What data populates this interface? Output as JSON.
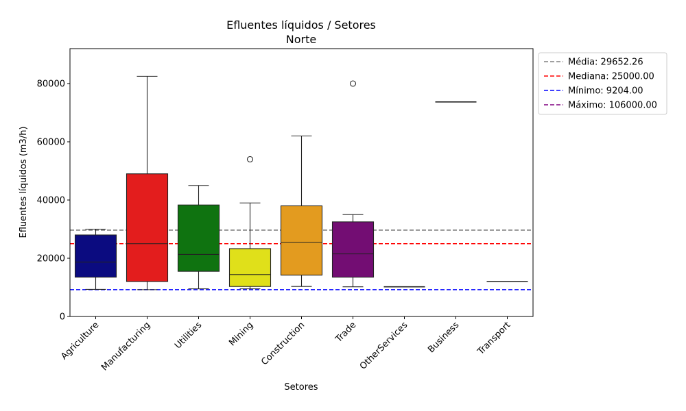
{
  "chart_data": {
    "type": "box",
    "title": "Efluentes líquidos / Setores",
    "subtitle": "Norte",
    "xlabel": "Setores",
    "ylabel": "Efluentes líquidos (m3/h)",
    "ylim": [
      0,
      92000
    ],
    "yticks": [
      0,
      20000,
      40000,
      60000,
      80000
    ],
    "ytick_labels": [
      "0",
      "20000",
      "40000",
      "60000",
      "80000"
    ],
    "categories": [
      "Agriculture",
      "Manufacturing",
      "Utilities",
      "Mining",
      "Construction",
      "Trade",
      "OtherServices",
      "Business",
      "Transport"
    ],
    "boxes": [
      {
        "category": "Agriculture",
        "color": "#0b0b80",
        "whisker_low": 9300,
        "q1": 13500,
        "median": 18700,
        "q3": 28000,
        "whisker_high": 30000,
        "outliers": []
      },
      {
        "category": "Manufacturing",
        "color": "#e31d1d",
        "whisker_low": 9204,
        "q1": 12000,
        "median": 25000,
        "q3": 49000,
        "whisker_high": 82500,
        "outliers": []
      },
      {
        "category": "Utilities",
        "color": "#0f7310",
        "whisker_low": 9500,
        "q1": 15500,
        "median": 21300,
        "q3": 38300,
        "whisker_high": 45000,
        "outliers": []
      },
      {
        "category": "Mining",
        "color": "#e0e01a",
        "whisker_low": 9500,
        "q1": 10300,
        "median": 14400,
        "q3": 23300,
        "whisker_high": 39000,
        "outliers": [
          54000
        ]
      },
      {
        "category": "Construction",
        "color": "#e39b1f",
        "whisker_low": 10300,
        "q1": 14200,
        "median": 25500,
        "q3": 38000,
        "whisker_high": 62000,
        "outliers": []
      },
      {
        "category": "Trade",
        "color": "#730d73",
        "whisker_low": 10200,
        "q1": 13500,
        "median": 21500,
        "q3": 32500,
        "whisker_high": 35000,
        "outliers": [
          80000
        ]
      },
      {
        "category": "OtherServices",
        "color": "#333333",
        "whisker_low": 10200,
        "q1": 10200,
        "median": 10200,
        "q3": 10200,
        "whisker_high": 10200,
        "outliers": []
      },
      {
        "category": "Business",
        "color": "#333333",
        "whisker_low": 73700,
        "q1": 73700,
        "median": 73700,
        "q3": 73700,
        "whisker_high": 73700,
        "outliers": []
      },
      {
        "category": "Transport",
        "color": "#333333",
        "whisker_low": 12000,
        "q1": 12000,
        "median": 12000,
        "q3": 12000,
        "whisker_high": 12000,
        "outliers": []
      }
    ],
    "reference_lines": [
      {
        "label": "Média: 29652.26",
        "value": 29652.26,
        "color": "#808080"
      },
      {
        "label": "Mediana: 25000.00",
        "value": 25000.0,
        "color": "#ff0000"
      },
      {
        "label": "Mínimo: 9204.00",
        "value": 9204.0,
        "color": "#0000ff"
      },
      {
        "label": "Máximo: 106000.00",
        "value": 106000.0,
        "color": "#800080"
      }
    ],
    "legend_position": "outside-top-right",
    "grid": false
  }
}
